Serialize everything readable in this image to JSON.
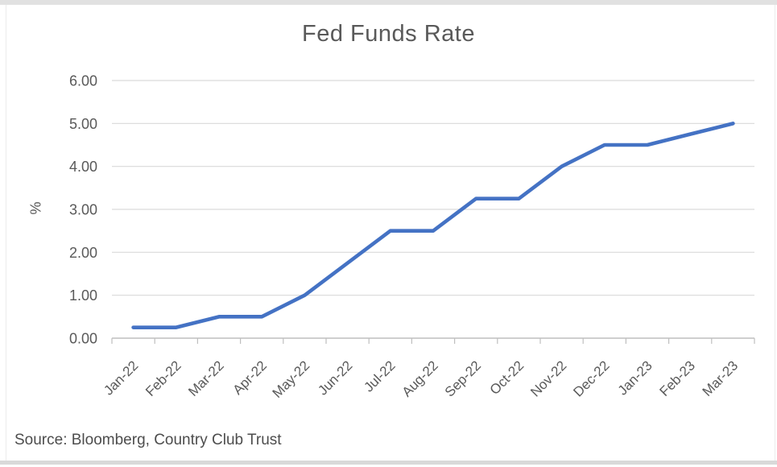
{
  "chart_data": {
    "type": "line",
    "title": "Fed Funds Rate",
    "categories": [
      "Jan-22",
      "Feb-22",
      "Mar-22",
      "Apr-22",
      "May-22",
      "Jun-22",
      "Jul-22",
      "Aug-22",
      "Sep-22",
      "Oct-22",
      "Nov-22",
      "Dec-22",
      "Jan-23",
      "Feb-23",
      "Mar-23"
    ],
    "series": [
      {
        "name": "Fed Funds Rate",
        "values": [
          0.25,
          0.25,
          0.5,
          0.5,
          1.0,
          1.75,
          2.5,
          2.5,
          3.25,
          3.25,
          4.0,
          4.5,
          4.5,
          4.75,
          5.0
        ]
      }
    ],
    "xlabel": "",
    "ylabel": "%",
    "ylim": [
      0,
      6
    ],
    "ytick_step": 1,
    "ytick_labels": [
      "0.00",
      "1.00",
      "2.00",
      "3.00",
      "4.00",
      "5.00",
      "6.00"
    ],
    "x_label_rotation": -45,
    "grid": "horizontal",
    "legend": "none",
    "colors": {
      "line": "#4472C4",
      "gridline": "#d9d9d9",
      "axis": "#bfbfbf",
      "axis_text": "#595959",
      "title_text": "#595959"
    }
  },
  "source": {
    "text": "Source: Bloomberg, Country Club Trust"
  }
}
